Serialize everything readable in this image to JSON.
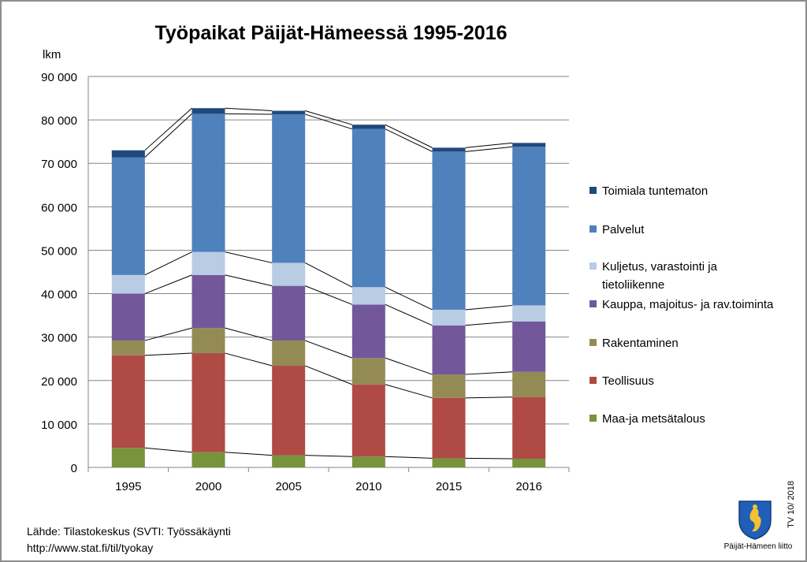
{
  "chart_data": {
    "type": "bar",
    "stacked": true,
    "title": "Työpaikat Päijät-Hämeessä 1995-2016",
    "ylabel": "lkm",
    "xlabel": "",
    "ylim": [
      0,
      90000
    ],
    "yticks": [
      "0",
      "10 000",
      "20 000",
      "30 000",
      "40 000",
      "50 000",
      "60 000",
      "70 000",
      "80 000",
      "90 000"
    ],
    "categories": [
      "1995",
      "2000",
      "2005",
      "2010",
      "2015",
      "2016"
    ],
    "series": [
      {
        "name": "Maa-ja metsätalous",
        "color": "#77933c",
        "values": [
          4500,
          3500,
          2800,
          2500,
          2100,
          2000
        ]
      },
      {
        "name": "Teollisuus",
        "color": "#b04a45",
        "values": [
          21300,
          22800,
          20600,
          16600,
          13900,
          14200
        ]
      },
      {
        "name": "Rakentaminen",
        "color": "#948a54",
        "values": [
          3400,
          5800,
          5800,
          6100,
          5400,
          5800
        ]
      },
      {
        "name": "Kauppa, majoitus- ja rav.toiminta",
        "color": "#72589a",
        "values": [
          10800,
          12200,
          12600,
          12300,
          11300,
          11600
        ]
      },
      {
        "name": "Kuljetus, varastointi ja tietoliikenne",
        "color": "#b8cce4",
        "values": [
          4300,
          5300,
          5300,
          4000,
          3600,
          3700
        ]
      },
      {
        "name": "Palvelut",
        "color": "#4f81bd",
        "values": [
          27100,
          31800,
          34200,
          36400,
          36400,
          36500
        ]
      },
      {
        "name": "Toimiala tuntematon",
        "color": "#1f497d",
        "values": [
          1600,
          1300,
          800,
          1000,
          900,
          900
        ]
      }
    ],
    "legend_position": "right",
    "grid": true
  },
  "source": {
    "line1": "Lähde: Tilastokeskus (SVTI: Työssäkäynti",
    "line2": "http://www.stat.fi/til/tyokay"
  },
  "footer": {
    "tag": "TV 10/ 2018",
    "org": "Päijät-Hämeen liitto"
  }
}
